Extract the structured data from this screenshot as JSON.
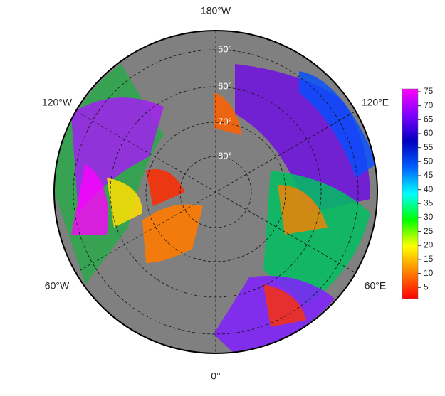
{
  "map": {
    "longitude_labels": [
      "180°W",
      "120°W",
      "120°E",
      "60°W",
      "60°E",
      "0°"
    ],
    "latitude_labels": [
      "50°",
      "60°",
      "70°",
      "80°"
    ],
    "colorbar": {
      "range": [
        1,
        76
      ],
      "ticks": [
        5,
        10,
        15,
        20,
        25,
        30,
        35,
        40,
        45,
        50,
        55,
        60,
        65,
        70,
        75
      ],
      "colors": [
        "#ff0000",
        "#ff8000",
        "#ffff00",
        "#00ff00",
        "#00ffff",
        "#0060ff",
        "#0000c0",
        "#8000ff",
        "#ff00ff"
      ]
    }
  }
}
